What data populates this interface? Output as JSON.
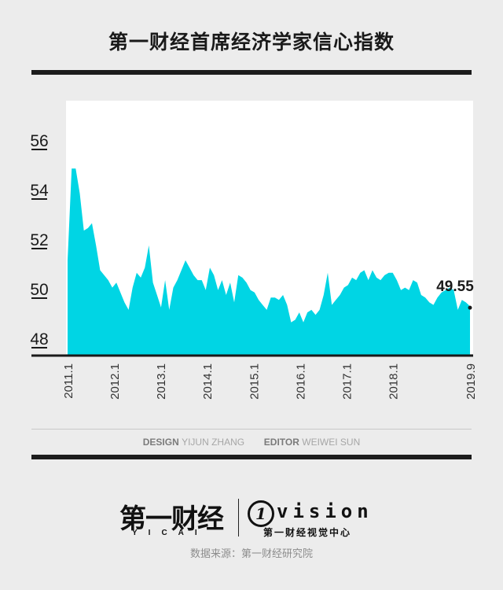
{
  "title": "第一财经首席经济学家信心指数",
  "credits": {
    "design_key": "DESIGN",
    "design_name": "YIJUN ZHANG",
    "editor_key": "EDITOR",
    "editor_name": "WEIWEI SUN"
  },
  "logo": {
    "brand": "第一财经",
    "brand_sub": "YICAI",
    "vision_mark": "1",
    "vision_word": "vision",
    "vision_sub": "第一财经视觉中心"
  },
  "source": "数据来源：第一财经研究院",
  "colors": {
    "area": "#00d5e4",
    "plot_bg": "#ffffff",
    "background": "#ececec",
    "text_dark": "#1a1a1a"
  },
  "chart_data": {
    "type": "area",
    "title": "第一财经首席经济学家信心指数",
    "xlabel": "",
    "ylabel": "",
    "ylim": [
      48,
      57
    ],
    "yticks": [
      "48",
      "50",
      "52",
      "54",
      "56"
    ],
    "x_start": "2011.1",
    "xticks": [
      "2011.1",
      "2012.1",
      "2013.1",
      "2014.1",
      "2015.1",
      "2016.1",
      "2017.1",
      "2018.1",
      "2019.9"
    ],
    "last_value_label": "49.55",
    "grid": false,
    "series": [
      {
        "values": [
          51.4,
          55.1,
          55.1,
          54.1,
          52.6,
          52.7,
          52.9,
          52.0,
          51.0,
          50.8,
          50.6,
          50.3,
          50.5,
          50.1,
          49.7,
          49.4,
          50.3,
          50.9,
          50.7,
          51.1,
          52.0,
          50.5,
          50.0,
          49.5,
          50.6,
          49.4,
          50.3,
          50.6,
          51.0,
          51.4,
          51.1,
          50.8,
          50.6,
          50.6,
          50.2,
          51.1,
          50.8,
          50.2,
          50.6,
          50.0,
          50.5,
          49.7,
          50.8,
          50.7,
          50.5,
          50.2,
          50.1,
          49.8,
          49.6,
          49.4,
          49.9,
          49.9,
          49.8,
          50.0,
          49.6,
          48.9,
          49.0,
          49.3,
          48.9,
          49.3,
          49.4,
          49.2,
          49.4,
          50.0,
          50.9,
          49.6,
          49.8,
          50.0,
          50.3,
          50.4,
          50.7,
          50.6,
          50.9,
          51.0,
          50.6,
          51.0,
          50.7,
          50.6,
          50.8,
          50.9,
          50.9,
          50.6,
          50.2,
          50.3,
          50.2,
          50.6,
          50.5,
          50.0,
          49.9,
          49.7,
          49.6,
          49.9,
          50.1,
          50.2,
          50.3,
          50.2,
          49.4,
          49.8,
          49.7,
          49.55
        ]
      }
    ]
  }
}
